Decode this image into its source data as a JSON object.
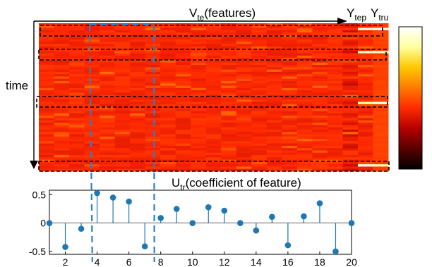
{
  "labels": {
    "features_main": "V",
    "features_sub": "te",
    "features_rest": "(features)",
    "ytep_main": "Y",
    "ytep_sub": "tep",
    "ytru_main": "Y",
    "ytru_sub": "tru",
    "time": "time",
    "utr_main": "U",
    "utr_sub": "tr",
    "utr_rest": "(coefficient of feature)"
  },
  "colors": {
    "stem": "#1f77b4",
    "highlight_box": "#2a7fc9",
    "dashed_box": "#000000",
    "colormap": [
      "#000000",
      "#5a0000",
      "#b40000",
      "#ff2a00",
      "#ff7a00",
      "#ffc800",
      "#ffffa0",
      "#ffffff"
    ]
  },
  "chart_data": [
    {
      "type": "heatmap",
      "title": "",
      "xlabel": "V_te(features)",
      "ylabel": "time",
      "n_feature_columns": 21,
      "extra_columns": [
        "Y_tep",
        "Y_tru"
      ],
      "highlighted_rows": [
        "top",
        "upper",
        "middle",
        "bottom"
      ],
      "colorbar": {
        "cmap": "hot",
        "ticks": []
      }
    },
    {
      "type": "stem",
      "title": "",
      "xlabel": "",
      "ylabel": "",
      "x": [
        1,
        2,
        3,
        4,
        5,
        6,
        7,
        8,
        9,
        10,
        11,
        12,
        13,
        14,
        15,
        16,
        17,
        18,
        19,
        20
      ],
      "values": [
        0.0,
        -0.42,
        -0.1,
        0.53,
        0.45,
        0.38,
        -0.41,
        0.09,
        0.25,
        0.0,
        0.28,
        0.22,
        0.0,
        -0.13,
        0.11,
        -0.39,
        0.12,
        0.35,
        -0.5,
        0.0
      ],
      "xlim": [
        1,
        20
      ],
      "ylim": [
        -0.55,
        0.58
      ],
      "xticks": [
        2,
        4,
        6,
        8,
        10,
        12,
        14,
        16,
        18,
        20
      ],
      "yticks": [
        -0.5,
        0,
        0.5
      ],
      "ytick_labels": [
        "-0.5",
        "0",
        "0.5"
      ],
      "highlighted_x_range": [
        3.7,
        7.6
      ]
    }
  ]
}
